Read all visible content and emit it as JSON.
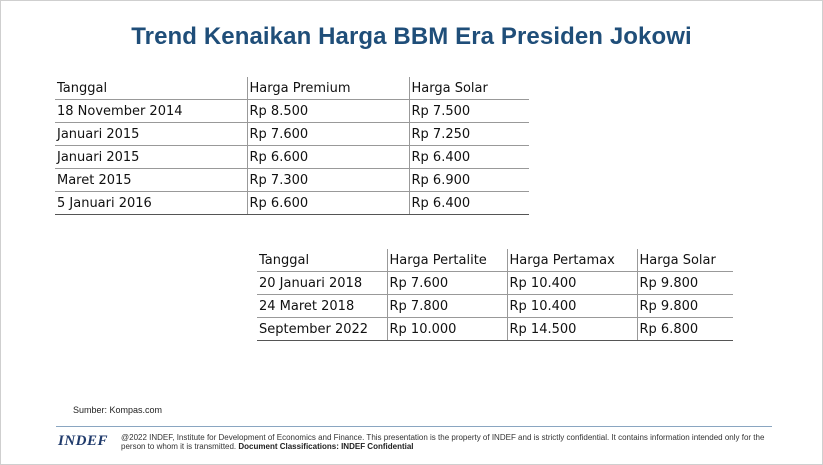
{
  "title": "Trend Kenaikan Harga BBM Era Presiden Jokowi",
  "table1": {
    "headers": [
      "Tanggal",
      "Harga Premium",
      "Harga Solar"
    ],
    "rows": [
      [
        "18 November 2014",
        "Rp 8.500",
        "Rp 7.500"
      ],
      [
        "Januari 2015",
        "Rp 7.600",
        "Rp 7.250"
      ],
      [
        "Januari 2015",
        "Rp 6.600",
        "Rp 6.400"
      ],
      [
        "Maret 2015",
        "Rp 7.300",
        "Rp 6.900"
      ],
      [
        "5 Januari 2016",
        "Rp 6.600",
        "Rp 6.400"
      ]
    ]
  },
  "table2": {
    "headers": [
      "Tanggal",
      "Harga Pertalite",
      "Harga Pertamax",
      "Harga Solar"
    ],
    "rows": [
      [
        "20 Januari 2018",
        "Rp 7.600",
        "Rp 10.400",
        "Rp 9.800"
      ],
      [
        "24 Maret 2018",
        "Rp 7.800",
        "Rp 10.400",
        "Rp 9.800"
      ],
      [
        "September 2022",
        "Rp 10.000",
        "Rp 14.500",
        "Rp 6.800"
      ]
    ]
  },
  "source": "Sumber: Kompas.com",
  "footer": {
    "logo": "INDEF",
    "disclaimer": "@2022 INDEF, Institute for Development of Economics and Finance. This presentation is the property of INDEF and is strictly confidential. It contains information intended only for the person to whom it is transmitted.",
    "classification": "Document Classifications: INDEF Confidential"
  },
  "colors": {
    "title": "#1f4e79",
    "logo": "#1f3a6b",
    "rule": "#8aa6c1"
  }
}
